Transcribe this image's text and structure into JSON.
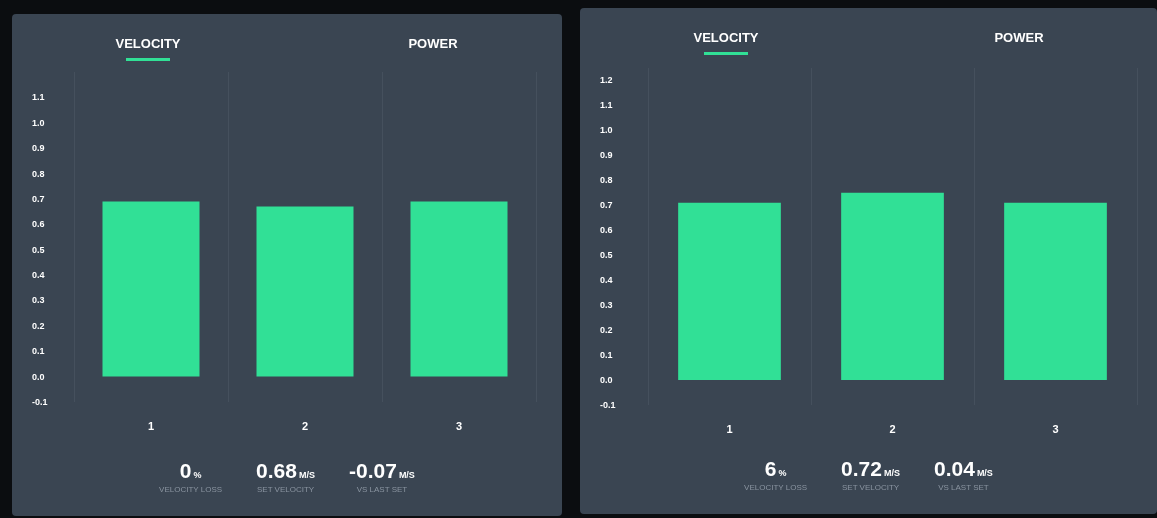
{
  "chart_data": [
    {
      "type": "bar",
      "title": "VELOCITY",
      "categories": [
        "1",
        "2",
        "3"
      ],
      "values": [
        0.69,
        0.67,
        0.69
      ],
      "color": "#31e096",
      "ylim": [
        -0.1,
        1.2
      ],
      "yticks": [
        {
          "value": -0.1,
          "label": "-0.1"
        },
        {
          "value": 0,
          "label": "0.0"
        },
        {
          "value": 0.1,
          "label": "0.1"
        },
        {
          "value": 0.2,
          "label": "0.2"
        },
        {
          "value": 0.3,
          "label": "0.3"
        },
        {
          "value": 0.4,
          "label": "0.4"
        },
        {
          "value": 0.5,
          "label": "0.5"
        },
        {
          "value": 0.6,
          "label": "0.6"
        },
        {
          "value": 0.7,
          "label": "0.7"
        },
        {
          "value": 0.8,
          "label": "0.8"
        },
        {
          "value": 0.9,
          "label": "0.9"
        },
        {
          "value": 1,
          "label": "1.0"
        },
        {
          "value": 1.1,
          "label": "1.1"
        }
      ],
      "grid": "x",
      "annotations": [
        "POWER",
        "0",
        "%",
        "VELOCITY LOSS",
        "0.68",
        "M/S",
        "SET VELOCITY",
        "-0.07",
        "M/S",
        "VS LAST SET"
      ]
    },
    {
      "type": "bar",
      "title": "VELOCITY",
      "categories": [
        "1",
        "2",
        "3"
      ],
      "values": [
        0.71,
        0.75,
        0.71
      ],
      "color": "#31e096",
      "ylim": [
        -0.1,
        1.25
      ],
      "yticks": [
        {
          "value": -0.1,
          "label": "-0.1"
        },
        {
          "value": 0,
          "label": "0.0"
        },
        {
          "value": 0.1,
          "label": "0.1"
        },
        {
          "value": 0.2,
          "label": "0.2"
        },
        {
          "value": 0.3,
          "label": "0.3"
        },
        {
          "value": 0.4,
          "label": "0.4"
        },
        {
          "value": 0.5,
          "label": "0.5"
        },
        {
          "value": 0.6,
          "label": "0.6"
        },
        {
          "value": 0.7,
          "label": "0.7"
        },
        {
          "value": 0.8,
          "label": "0.8"
        },
        {
          "value": 0.9,
          "label": "0.9"
        },
        {
          "value": 1,
          "label": "1.0"
        },
        {
          "value": 1.1,
          "label": "1.1"
        },
        {
          "value": 1.2,
          "label": "1.2"
        }
      ],
      "grid": "x",
      "annotations": [
        "POWER",
        "6",
        "%",
        "VELOCITY LOSS",
        "0.72",
        "M/S",
        "SET VELOCITY",
        "0.04",
        "M/S",
        "VS LAST SET"
      ]
    }
  ]
}
